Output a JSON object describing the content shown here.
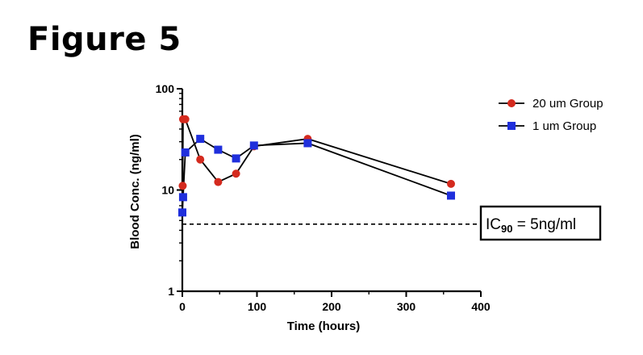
{
  "figure_label": "Figure 5",
  "chart_data": {
    "type": "line",
    "title": "",
    "xlabel": "Time (hours)",
    "ylabel": "Blood Conc. (ng/ml)",
    "xlim": [
      0,
      400
    ],
    "ylim": [
      1,
      100
    ],
    "yscale": "log",
    "x_ticks": [
      0,
      100,
      200,
      300,
      400
    ],
    "y_ticks": [
      1,
      10,
      100
    ],
    "x_tick_labels": [
      "0",
      "100",
      "200",
      "300",
      "400"
    ],
    "y_tick_labels": [
      "1",
      "10",
      "100"
    ],
    "legend_position": "top-right",
    "series": [
      {
        "name": "20 um Group",
        "color": "#d42a1e",
        "marker": "circle",
        "x": [
          0.5,
          1,
          4,
          24,
          48,
          72,
          96,
          168,
          360
        ],
        "y": [
          11,
          50,
          50,
          20,
          12,
          14.5,
          27,
          32,
          11.5
        ]
      },
      {
        "name": "1 um Group",
        "color": "#1f2fdc",
        "marker": "square",
        "x": [
          0,
          1,
          4,
          24,
          48,
          72,
          96,
          168,
          360
        ],
        "y": [
          6,
          8.5,
          23.5,
          32,
          25,
          20.5,
          27.5,
          29,
          8.8
        ]
      }
    ],
    "annotations": [
      {
        "kind": "reference-line",
        "y": 4.6,
        "style": "dashed",
        "label_prefix": "IC",
        "label_subscript": "90",
        "label_suffix": " = 5ng/ml"
      }
    ]
  }
}
